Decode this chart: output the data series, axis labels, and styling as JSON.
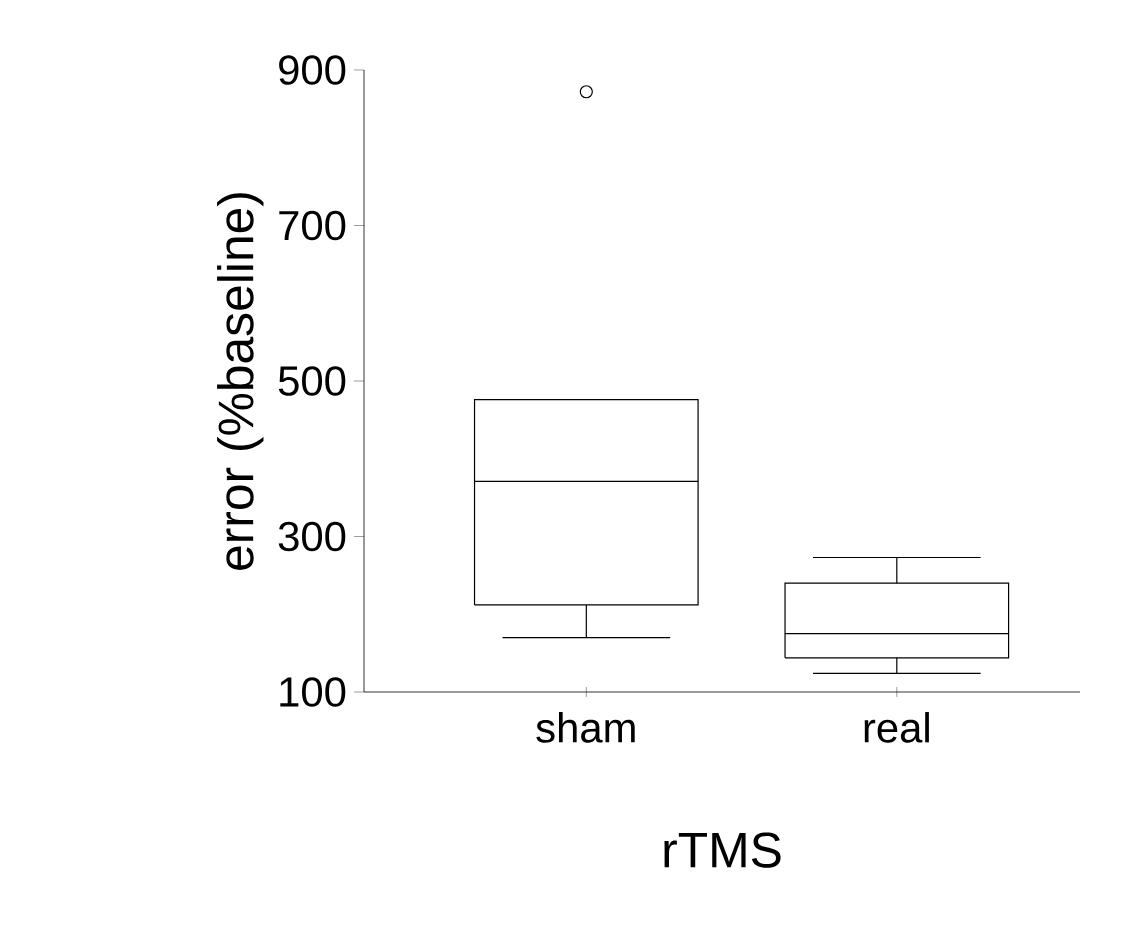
{
  "chart_data": {
    "type": "box",
    "xlabel": "rTMS",
    "ylabel": "error (%baseline)",
    "categories": [
      "sham",
      "real"
    ],
    "boxes": [
      {
        "low": 170,
        "q1": 212,
        "median": 371,
        "q3": 476,
        "high": 476,
        "outliers": [
          872
        ]
      },
      {
        "low": 124,
        "q1": 144,
        "median": 175,
        "q3": 240,
        "high": 273
      }
    ],
    "color": "#000000",
    "ylim": [
      100,
      900
    ],
    "yticks": [
      100,
      300,
      500,
      700,
      900
    ]
  }
}
